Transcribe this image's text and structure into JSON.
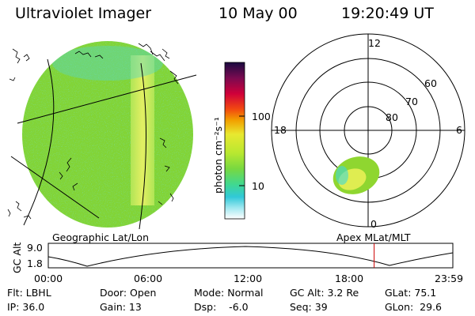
{
  "header": {
    "title": "Ultraviolet Imager",
    "date": "10 May 00",
    "time": "19:20:49 UT"
  },
  "colorbar": {
    "label": "photon cm⁻²s⁻¹",
    "ticks": [
      "100",
      "10"
    ],
    "scale": "log"
  },
  "panels": {
    "left_label": "Geographic Lat/Lon",
    "right_label": "Apex  MLat/MLT"
  },
  "polar": {
    "mlt_labels": [
      "12",
      "6",
      "0",
      "18"
    ],
    "lat_labels": [
      "60",
      "70",
      "80"
    ]
  },
  "timeline": {
    "ylabel": "GC Alt",
    "y_ticks": [
      "9.0",
      "1.8"
    ],
    "x_ticks": [
      "00:00",
      "06:00",
      "12:00",
      "18:00",
      "23:59"
    ],
    "current_time": "19:20",
    "marker_color": "#cc0000"
  },
  "info": {
    "row1": [
      "Flt: LBHL",
      "Door: Open",
      "Mode: Normal",
      "GC Alt: 3.2 Re",
      "GLat: 75.1"
    ],
    "row2": [
      "IP: 36.0",
      "Gain: 13",
      "Dsp:    -6.0",
      "Seq: 39",
      "GLon:  29.6"
    ]
  },
  "colors": {
    "aurora_green": "#8fd630",
    "aurora_yellow": "#f2f25a",
    "aurora_cyan": "#40d8d8"
  }
}
